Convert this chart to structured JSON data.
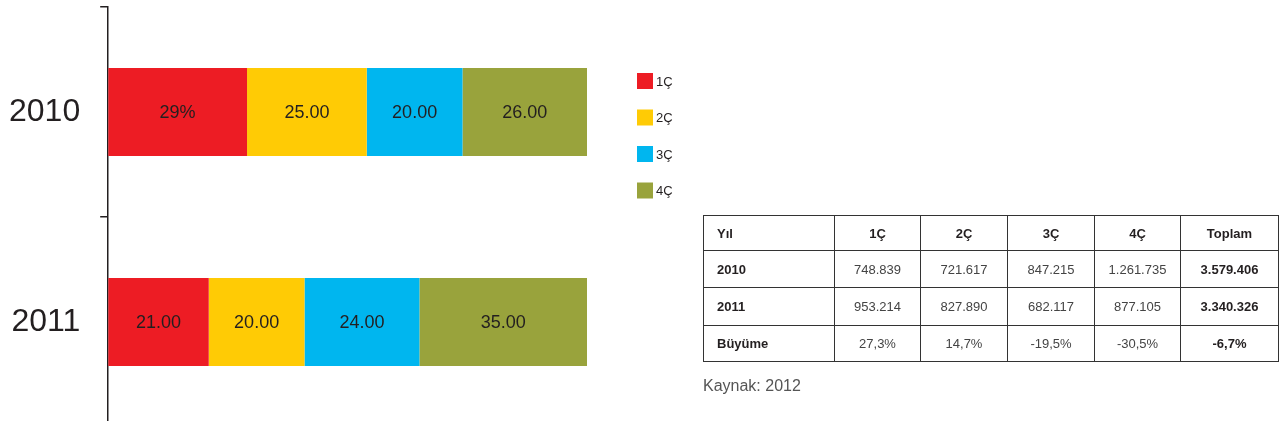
{
  "chart_data": [
    {
      "type": "bar",
      "orientation": "horizontal",
      "stacked": true,
      "categories": [
        "2010",
        "2011"
      ],
      "series": [
        {
          "name": "1Ç",
          "color": "#ed1c24",
          "values": [
            29,
            21
          ],
          "value_labels": [
            "29%",
            "21.00"
          ]
        },
        {
          "name": "2Ç",
          "color": "#ffcb05",
          "values": [
            25,
            20
          ],
          "value_labels": [
            "25.00",
            "20.00"
          ]
        },
        {
          "name": "3Ç",
          "color": "#00b6ef",
          "values": [
            20,
            24
          ],
          "value_labels": [
            "20.00",
            "24.00"
          ]
        },
        {
          "name": "4Ç",
          "color": "#99a33c",
          "values": [
            26,
            35
          ],
          "value_labels": [
            "26.00",
            "35.00"
          ]
        }
      ],
      "xlim": [
        0,
        100
      ],
      "tick_labels": "y",
      "legend": "right"
    },
    {
      "type": "heatmap",
      "ylabel": "Yıl",
      "categories": [
        "1Ç",
        "2Ç",
        "3Ç",
        "4Ç",
        "Toplam"
      ],
      "y_categories": [
        "2010",
        "2011",
        "Büyüme"
      ],
      "cells": [
        [
          748839,
          721617,
          847215,
          1261735,
          3579406
        ],
        [
          953214,
          827890,
          682117,
          877105,
          3340326
        ],
        [
          27.3,
          14.7,
          -19.5,
          -30.5,
          -6.7
        ]
      ],
      "cell_labels": [
        [
          "748.839",
          "721.617",
          "847.215",
          "1.261.735",
          "3.579.406"
        ],
        [
          "953.214",
          "827.890",
          "682.117",
          "877.105",
          "3.340.326"
        ],
        [
          "27,3%",
          "14,7%",
          "-19,5%",
          "-30,5%",
          "-6,7%"
        ]
      ],
      "annotations": [
        "Kaynak: 2012"
      ]
    }
  ]
}
